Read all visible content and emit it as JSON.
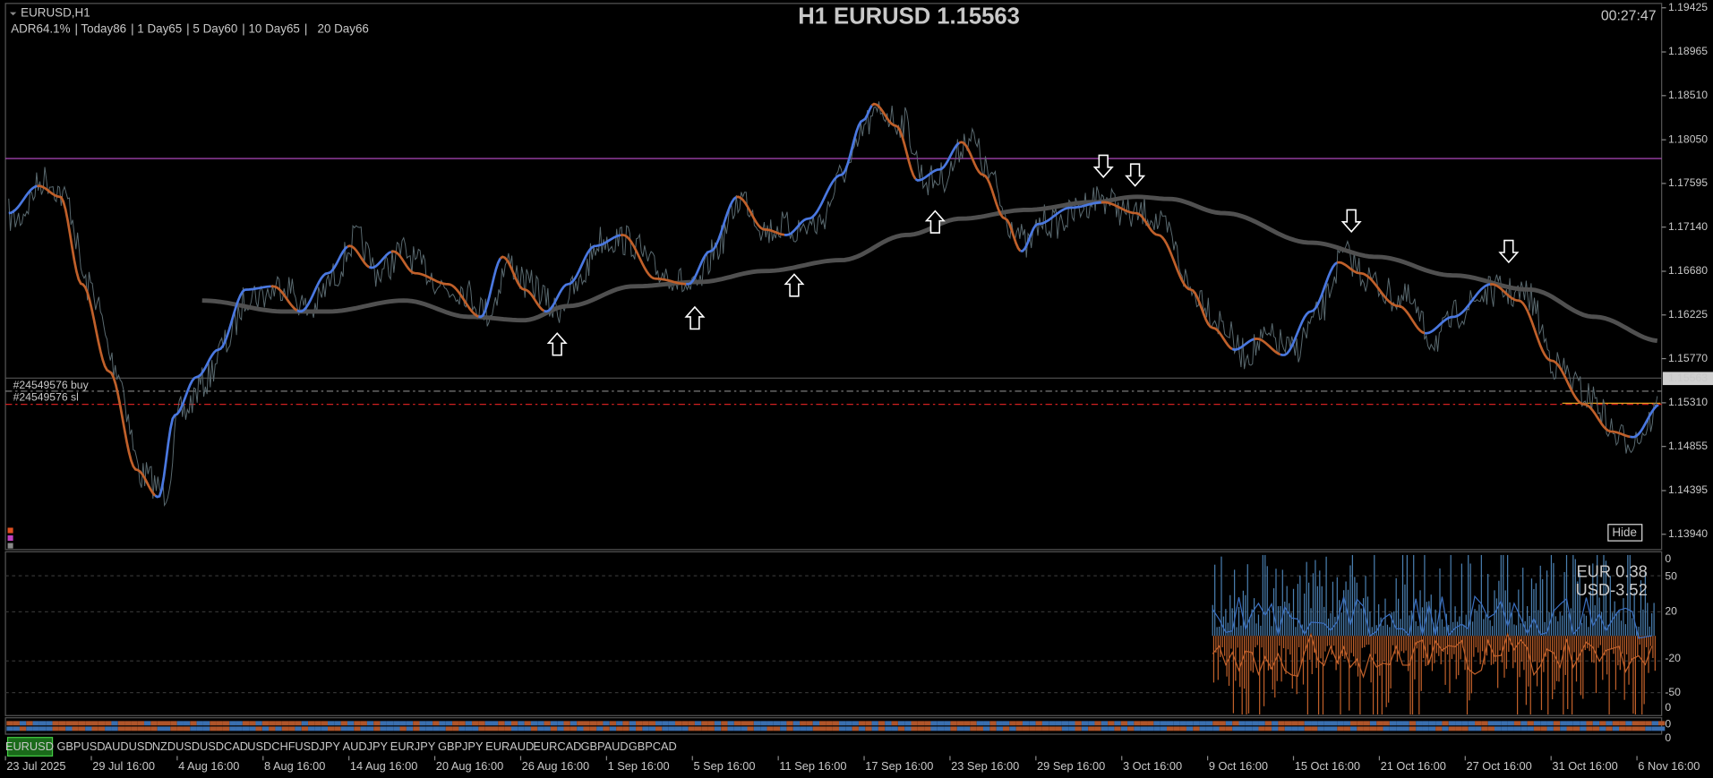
{
  "window": {
    "symbol": "EURUSD,H1",
    "title": "H1 EURUSD 1.15563",
    "timer": "00:27:47",
    "hide_button": "Hide"
  },
  "adr": [
    {
      "label": "ADR",
      "value": "64.1%"
    },
    {
      "label": " | Today",
      "value": "86"
    },
    {
      "label": " | 1 Day",
      "value": "65"
    },
    {
      "label": " | 5 Day",
      "value": "60"
    },
    {
      "label": " | 10 Day",
      "value": "65"
    },
    {
      "label": " |   20 Day",
      "value": "66"
    }
  ],
  "price_axis": [
    "1.19425",
    "1.18965",
    "1.18510",
    "1.18050",
    "1.17595",
    "1.17140",
    "1.16680",
    "1.16225",
    "1.15770",
    "1.15310",
    "1.14855",
    "1.14395",
    "1.13940"
  ],
  "current_price": "1.15563",
  "orders": [
    "#24549576 buy",
    "#24549576 sl"
  ],
  "indicator": {
    "legend": [
      "EUR 0.38",
      "USD-3.52"
    ],
    "axis": [
      "0",
      "50",
      "20",
      "-20",
      "-50",
      "0"
    ],
    "strip_axis": [
      "0",
      "0"
    ]
  },
  "symbols": [
    "EURUSD",
    "GBPUSD",
    "AUDUSD",
    "NZDUSD",
    "USDCAD",
    "USDCHF",
    "USDJPY",
    "AUDJPY",
    "EURJPY",
    "GBPJPY",
    "EURAUD",
    "EURCAD",
    "GBPAUD",
    "GBPCAD"
  ],
  "time_axis": [
    "23 Jul 2025",
    "29 Jul 16:00",
    "4 Aug 16:00",
    "8 Aug 16:00",
    "14 Aug 16:00",
    "20 Aug 16:00",
    "26 Aug 16:00",
    "1 Sep 16:00",
    "5 Sep 16:00",
    "11 Sep 16:00",
    "17 Sep 16:00",
    "23 Sep 16:00",
    "29 Sep 16:00",
    "3 Oct 16:00",
    "9 Oct 16:00",
    "15 Oct 16:00",
    "21 Oct 16:00",
    "27 Oct 16:00",
    "31 Oct 16:00",
    "6 Nov 16:00"
  ]
}
